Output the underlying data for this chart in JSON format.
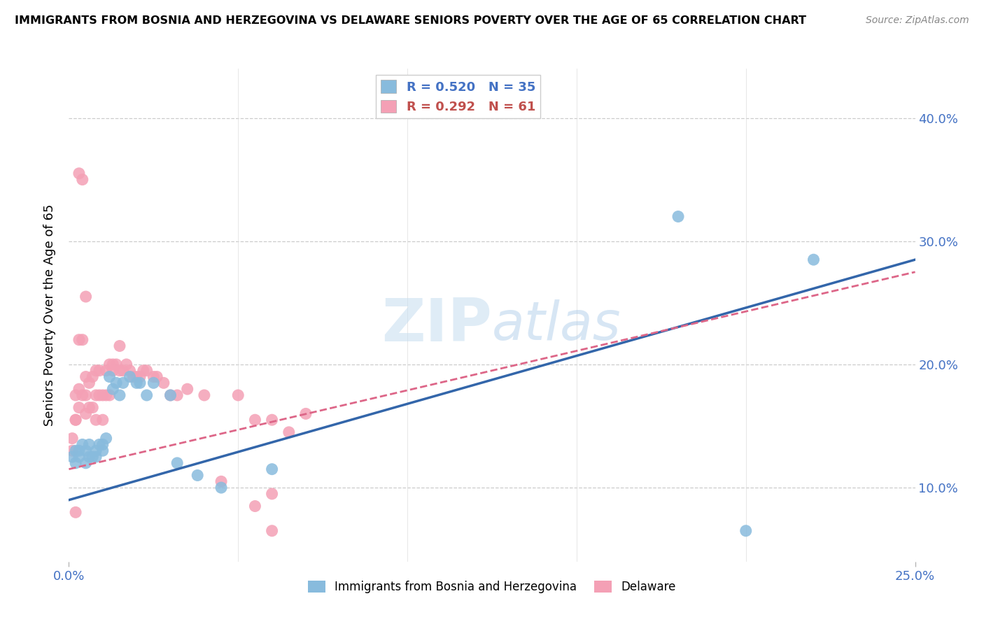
{
  "title": "IMMIGRANTS FROM BOSNIA AND HERZEGOVINA VS DELAWARE SENIORS POVERTY OVER THE AGE OF 65 CORRELATION CHART",
  "source": "Source: ZipAtlas.com",
  "ylabel": "Seniors Poverty Over the Age of 65",
  "xlim": [
    0.0,
    0.25
  ],
  "ylim": [
    0.04,
    0.44
  ],
  "xtick_positions": [
    0.0,
    0.25
  ],
  "xtick_labels": [
    "0.0%",
    "25.0%"
  ],
  "ytick_positions": [
    0.1,
    0.2,
    0.3,
    0.4
  ],
  "ytick_labels": [
    "10.0%",
    "20.0%",
    "30.0%",
    "40.0%"
  ],
  "blue_R": 0.52,
  "blue_N": 35,
  "pink_R": 0.292,
  "pink_N": 61,
  "blue_color": "#88bbdd",
  "pink_color": "#f4a0b5",
  "blue_line_color": "#3366aa",
  "pink_line_color": "#dd6688",
  "watermark": "ZIPatlas",
  "legend_label_blue": "Immigrants from Bosnia and Herzegovina",
  "legend_label_pink": "Delaware",
  "blue_scatter_x": [
    0.001,
    0.002,
    0.002,
    0.003,
    0.003,
    0.004,
    0.005,
    0.005,
    0.006,
    0.006,
    0.007,
    0.008,
    0.008,
    0.009,
    0.01,
    0.01,
    0.011,
    0.012,
    0.013,
    0.014,
    0.015,
    0.016,
    0.018,
    0.02,
    0.021,
    0.023,
    0.025,
    0.03,
    0.032,
    0.038,
    0.045,
    0.06,
    0.18,
    0.22,
    0.2
  ],
  "blue_scatter_y": [
    0.125,
    0.13,
    0.12,
    0.125,
    0.13,
    0.135,
    0.13,
    0.12,
    0.125,
    0.135,
    0.125,
    0.125,
    0.13,
    0.135,
    0.135,
    0.13,
    0.14,
    0.19,
    0.18,
    0.185,
    0.175,
    0.185,
    0.19,
    0.185,
    0.185,
    0.175,
    0.185,
    0.175,
    0.12,
    0.11,
    0.1,
    0.115,
    0.32,
    0.285,
    0.065
  ],
  "pink_scatter_x": [
    0.001,
    0.001,
    0.002,
    0.002,
    0.002,
    0.003,
    0.003,
    0.003,
    0.004,
    0.004,
    0.005,
    0.005,
    0.005,
    0.006,
    0.006,
    0.007,
    0.007,
    0.008,
    0.008,
    0.008,
    0.009,
    0.009,
    0.01,
    0.01,
    0.011,
    0.011,
    0.012,
    0.012,
    0.013,
    0.013,
    0.014,
    0.015,
    0.015,
    0.016,
    0.017,
    0.018,
    0.019,
    0.02,
    0.021,
    0.022,
    0.023,
    0.025,
    0.026,
    0.028,
    0.03,
    0.032,
    0.035,
    0.04,
    0.045,
    0.05,
    0.055,
    0.06,
    0.065,
    0.07,
    0.003,
    0.004,
    0.005,
    0.055,
    0.06,
    0.06,
    0.002
  ],
  "pink_scatter_y": [
    0.13,
    0.14,
    0.155,
    0.175,
    0.155,
    0.165,
    0.18,
    0.22,
    0.175,
    0.22,
    0.16,
    0.175,
    0.19,
    0.165,
    0.185,
    0.165,
    0.19,
    0.155,
    0.175,
    0.195,
    0.175,
    0.195,
    0.155,
    0.175,
    0.175,
    0.195,
    0.175,
    0.2,
    0.195,
    0.2,
    0.2,
    0.195,
    0.215,
    0.195,
    0.2,
    0.195,
    0.19,
    0.19,
    0.19,
    0.195,
    0.195,
    0.19,
    0.19,
    0.185,
    0.175,
    0.175,
    0.18,
    0.175,
    0.105,
    0.175,
    0.155,
    0.155,
    0.145,
    0.16,
    0.355,
    0.35,
    0.255,
    0.085,
    0.095,
    0.065,
    0.08
  ]
}
